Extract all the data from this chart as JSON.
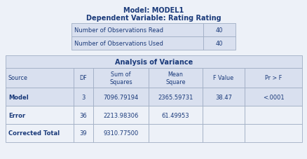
{
  "title_line1": "Model: MODEL1",
  "title_line2": "Dependent Variable: Rating Rating",
  "obs_read_label": "Number of Observations Read",
  "obs_read_value": "40",
  "obs_used_label": "Number of Observations Used",
  "obs_used_value": "40",
  "anova_title": "Analysis of Variance",
  "col_headers": [
    "Source",
    "DF",
    "Sum of\nSquares",
    "Mean\nSquare",
    "F Value",
    "Pr > F"
  ],
  "rows": [
    [
      "Model",
      "3",
      "7096.79194",
      "2365.59731",
      "38.47",
      "<.0001"
    ],
    [
      "Error",
      "36",
      "2213.98306",
      "61.49953",
      "",
      ""
    ],
    [
      "Corrected Total",
      "39",
      "9310.77500",
      "",
      "",
      ""
    ]
  ],
  "bg_color": "#edf1f8",
  "header_bg": "#d9e0ef",
  "row_bg_even": "#edf1f8",
  "title_color": "#1a3a7a",
  "text_color": "#1a3a7a",
  "border_color": "#a0aec4",
  "row_bgs": [
    "#d9e0ef",
    "#edf1f8",
    "#edf1f8"
  ]
}
